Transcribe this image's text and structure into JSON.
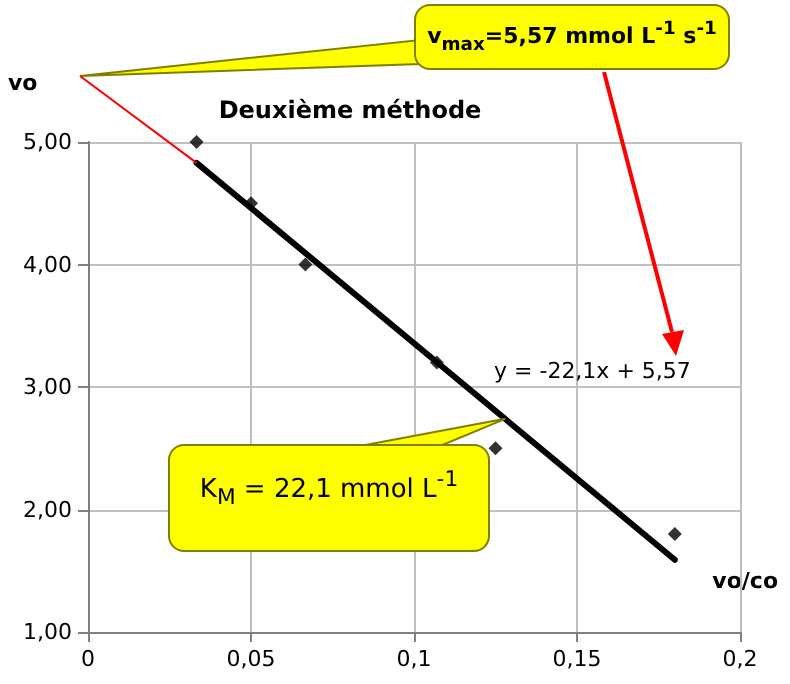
{
  "chart_data": {
    "type": "scatter",
    "title": "Deuxième méthode",
    "xlabel": "vo/co",
    "ylabel": "vo",
    "x": [
      0.0333,
      0.05,
      0.0667,
      0.107,
      0.125,
      0.18
    ],
    "series": [
      {
        "color": "#000000",
        "values": [
          5.0,
          4.5,
          4.0,
          3.2,
          2.5,
          1.8
        ]
      },
      {
        "type": "line",
        "color": "#000000",
        "marker": "none",
        "x": [
          0.0333,
          0.18
        ],
        "values": [
          4.83,
          1.59
        ]
      }
    ],
    "marker": "diamond",
    "xlim": [
      0,
      0.2
    ],
    "xticks": [
      0,
      {
        "value": 0.05,
        "label": "0,05"
      },
      {
        "value": 0.1,
        "label": "0,1"
      },
      {
        "value": 0.15,
        "label": "0,15"
      },
      {
        "value": 0.2,
        "label": "0,2"
      }
    ],
    "ylim": [
      1,
      5
    ],
    "yticks": [
      {
        "value": 1,
        "label": "1,00"
      },
      {
        "value": 2,
        "label": "2,00"
      },
      {
        "value": 3,
        "label": "3,00"
      },
      {
        "value": 4,
        "label": "4,00"
      },
      {
        "value": 5,
        "label": "5,00"
      }
    ],
    "grid": true,
    "annotations": [
      "v$_{max}$=5,57 mmol L$^{-1}$ s$^{-1}$",
      "y = -22,1x + 5,57",
      {
        "text": "K$_{M}$ = 22,1 mmol L$^{-1}$",
        "x": 0.128,
        "y": 2.74
      }
    ]
  }
}
